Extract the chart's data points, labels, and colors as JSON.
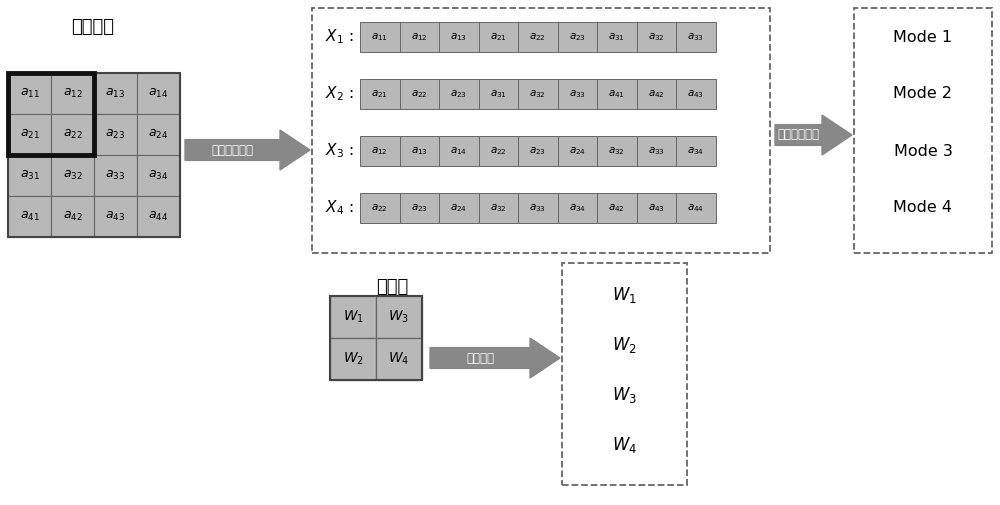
{
  "title_original": "原始信息",
  "title_conv": "卷积核",
  "arrow1_label": "原始信息提取",
  "arrow2_label": "模式加载信息",
  "arrow3_label": "权重系数",
  "matrix_cells": [
    [
      "a_{11}",
      "a_{12}",
      "a_{13}",
      "a_{14}"
    ],
    [
      "a_{21}",
      "a_{22}",
      "a_{23}",
      "a_{24}"
    ],
    [
      "a_{31}",
      "a_{32}",
      "a_{33}",
      "a_{34}"
    ],
    [
      "a_{41}",
      "a_{42}",
      "a_{43}",
      "a_{44}"
    ]
  ],
  "X_labels": [
    "X_1",
    "X_2",
    "X_3",
    "X_4"
  ],
  "X_rows": [
    [
      "a_{11}",
      "a_{12}",
      "a_{13}",
      "a_{21}",
      "a_{22}",
      "a_{23}",
      "a_{31}",
      "a_{32}",
      "a_{33}"
    ],
    [
      "a_{21}",
      "a_{22}",
      "a_{23}",
      "a_{31}",
      "a_{32}",
      "a_{33}",
      "a_{41}",
      "a_{42}",
      "a_{43}"
    ],
    [
      "a_{12}",
      "a_{13}",
      "a_{14}",
      "a_{22}",
      "a_{23}",
      "a_{24}",
      "a_{32}",
      "a_{33}",
      "a_{34}"
    ],
    [
      "a_{22}",
      "a_{23}",
      "a_{24}",
      "a_{32}",
      "a_{33}",
      "a_{34}",
      "a_{42}",
      "a_{43}",
      "a_{44}"
    ]
  ],
  "mode_labels": [
    "Mode 1",
    "Mode 2",
    "Mode 3",
    "Mode 4"
  ],
  "conv_cells": [
    [
      "W_1",
      "W_3"
    ],
    [
      "W_2",
      "W_4"
    ]
  ],
  "W_labels": [
    "W_1",
    "W_2",
    "W_3",
    "W_4"
  ],
  "cell_color": "#b8b8b8",
  "bg_color": "#ffffff",
  "arrow_color": "#808080"
}
